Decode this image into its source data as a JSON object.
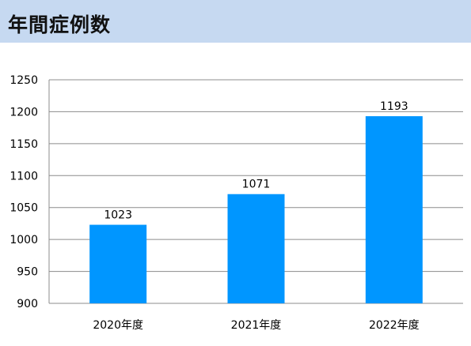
{
  "header": {
    "title": "年間症例数"
  },
  "colors": {
    "bar": "#0096ff",
    "grid": "#8c8c8c",
    "title_bg": "#c6d9f1"
  },
  "chart_data": {
    "type": "bar",
    "title": "年間症例数",
    "categories": [
      "2020年度",
      "2021年度",
      "2022年度"
    ],
    "values": [
      1023,
      1071,
      1193
    ],
    "data_labels": [
      "1023",
      "1071",
      "1193"
    ],
    "ylim": [
      900,
      1250
    ],
    "yticks": [
      900,
      950,
      1000,
      1050,
      1100,
      1150,
      1200,
      1250
    ],
    "ytick_labels": [
      "900",
      "950",
      "1000",
      "1050",
      "1100",
      "1150",
      "1200",
      "1250"
    ],
    "grid": true,
    "legend": "none"
  }
}
